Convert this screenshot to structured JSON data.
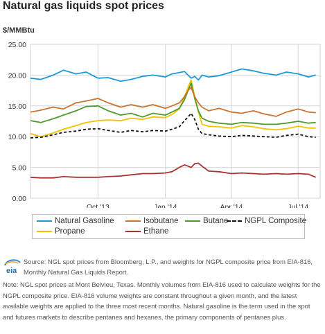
{
  "title": "Natural gas liquids spot prices",
  "y_unit": "$/MMBtu",
  "source_text": "Source: NGL spot prices from Bloomberg, L.P., and weights for NGPL composite price from EIA-816, Monthly Natural Gas Liquids Report.",
  "note_text": "Note: NGL spot prices at Mont Belvieu, Texas. Monthly volumes from EIA-816 used to calculate weights for the NGPL composite price. EIA-816 volume weights are constant throughout a given month, and the latest available weights are applied to the three most recent months. Natural gasoline is the term used in the spot and futures markets to describe pentanes and hexanes, the primary components of pentanes plus.",
  "logo_text": "eia",
  "legend": [
    {
      "label": "Natural Gasoline",
      "color": "#1f9ad6",
      "style": "solid"
    },
    {
      "label": "Isobutane",
      "color": "#c87533",
      "style": "solid"
    },
    {
      "label": "Butane",
      "color": "#4f9a2e",
      "style": "solid"
    },
    {
      "label": "NGPL Composite",
      "color": "#111111",
      "style": "dashed"
    },
    {
      "label": "Propane",
      "color": "#f2c200",
      "style": "solid"
    },
    {
      "label": "Ethane",
      "color": "#a83232",
      "style": "solid"
    }
  ],
  "chart_data": {
    "type": "line",
    "title": "Natural gas liquids spot prices",
    "ylabel": "$/MMBtu",
    "ylim": [
      0,
      25
    ],
    "yticks": [
      "0.00",
      "5.00",
      "10.00",
      "15.00",
      "20.00",
      "25.00"
    ],
    "xlim": [
      "2013-07-01",
      "2014-07-31"
    ],
    "xticks": [
      {
        "label": "Oct '13",
        "date": "2013-10-01"
      },
      {
        "label": "Jan '14",
        "date": "2014-01-01"
      },
      {
        "label": "Apr '14",
        "date": "2014-04-01"
      },
      {
        "label": "Jul '14",
        "date": "2014-07-01"
      }
    ],
    "grid": true,
    "legend_position": "bottom",
    "x": [
      "2013-07-01",
      "2013-07-15",
      "2013-08-01",
      "2013-08-15",
      "2013-09-01",
      "2013-09-15",
      "2013-10-01",
      "2013-10-15",
      "2013-11-01",
      "2013-11-15",
      "2013-12-01",
      "2013-12-15",
      "2014-01-01",
      "2014-01-10",
      "2014-01-20",
      "2014-01-27",
      "2014-02-01",
      "2014-02-05",
      "2014-02-10",
      "2014-02-15",
      "2014-02-20",
      "2014-03-01",
      "2014-03-15",
      "2014-04-01",
      "2014-04-15",
      "2014-05-01",
      "2014-05-15",
      "2014-06-01",
      "2014-06-15",
      "2014-07-01",
      "2014-07-15",
      "2014-07-25"
    ],
    "series": [
      {
        "name": "Natural Gasoline",
        "color": "#1f9ad6",
        "dashed": false,
        "values": [
          19.5,
          19.3,
          20.0,
          20.8,
          20.2,
          20.5,
          19.5,
          19.6,
          19.0,
          19.3,
          19.8,
          20.0,
          19.7,
          20.2,
          20.4,
          20.6,
          20.0,
          19.5,
          19.8,
          19.2,
          20.0,
          19.7,
          19.9,
          20.5,
          21.0,
          20.7,
          20.3,
          20.0,
          20.5,
          20.2,
          19.7,
          20.0
        ]
      },
      {
        "name": "Isobutane",
        "color": "#c87533",
        "dashed": false,
        "values": [
          14.0,
          14.3,
          14.8,
          14.5,
          15.5,
          15.8,
          16.2,
          15.5,
          14.8,
          15.2,
          14.8,
          15.2,
          14.6,
          15.0,
          15.5,
          16.5,
          17.5,
          18.0,
          16.5,
          15.5,
          14.8,
          14.2,
          14.6,
          14.0,
          13.8,
          14.2,
          13.7,
          13.3,
          14.0,
          14.5,
          14.0,
          13.9
        ]
      },
      {
        "name": "Butane",
        "color": "#4f9a2e",
        "dashed": false,
        "values": [
          12.6,
          12.3,
          12.9,
          13.5,
          14.2,
          14.9,
          15.0,
          14.2,
          13.5,
          13.8,
          13.2,
          13.8,
          13.5,
          14.0,
          14.6,
          16.0,
          17.5,
          18.7,
          16.2,
          14.2,
          13.0,
          12.5,
          12.2,
          12.0,
          12.3,
          12.2,
          12.0,
          12.0,
          12.2,
          12.5,
          12.2,
          12.3
        ]
      },
      {
        "name": "NGPL Composite",
        "color": "#111111",
        "dashed": true,
        "values": [
          9.8,
          9.9,
          10.3,
          10.7,
          10.9,
          11.2,
          11.3,
          11.0,
          10.7,
          11.0,
          10.8,
          11.0,
          10.9,
          11.2,
          11.6,
          12.6,
          13.2,
          13.8,
          12.8,
          11.2,
          10.5,
          10.3,
          10.1,
          10.0,
          10.2,
          10.1,
          10.0,
          9.9,
          10.2,
          10.4,
          10.0,
          9.9
        ]
      },
      {
        "name": "Propane",
        "color": "#f2c200",
        "dashed": false,
        "values": [
          10.5,
          10.0,
          10.6,
          11.2,
          11.8,
          12.3,
          12.6,
          12.7,
          12.6,
          13.0,
          12.8,
          13.2,
          13.1,
          13.6,
          14.5,
          16.5,
          18.0,
          19.2,
          16.5,
          14.0,
          12.0,
          11.7,
          11.6,
          11.4,
          11.8,
          11.6,
          11.3,
          11.1,
          11.3,
          11.7,
          11.4,
          11.4
        ]
      },
      {
        "name": "Ethane",
        "color": "#a83232",
        "dashed": false,
        "values": [
          3.4,
          3.3,
          3.3,
          3.5,
          3.4,
          3.4,
          3.4,
          3.5,
          3.6,
          3.8,
          4.0,
          4.0,
          4.1,
          4.3,
          5.0,
          5.4,
          5.2,
          5.0,
          5.6,
          5.7,
          5.2,
          4.4,
          4.3,
          4.0,
          4.1,
          4.0,
          3.9,
          4.0,
          3.9,
          4.0,
          3.9,
          3.4
        ]
      }
    ]
  }
}
